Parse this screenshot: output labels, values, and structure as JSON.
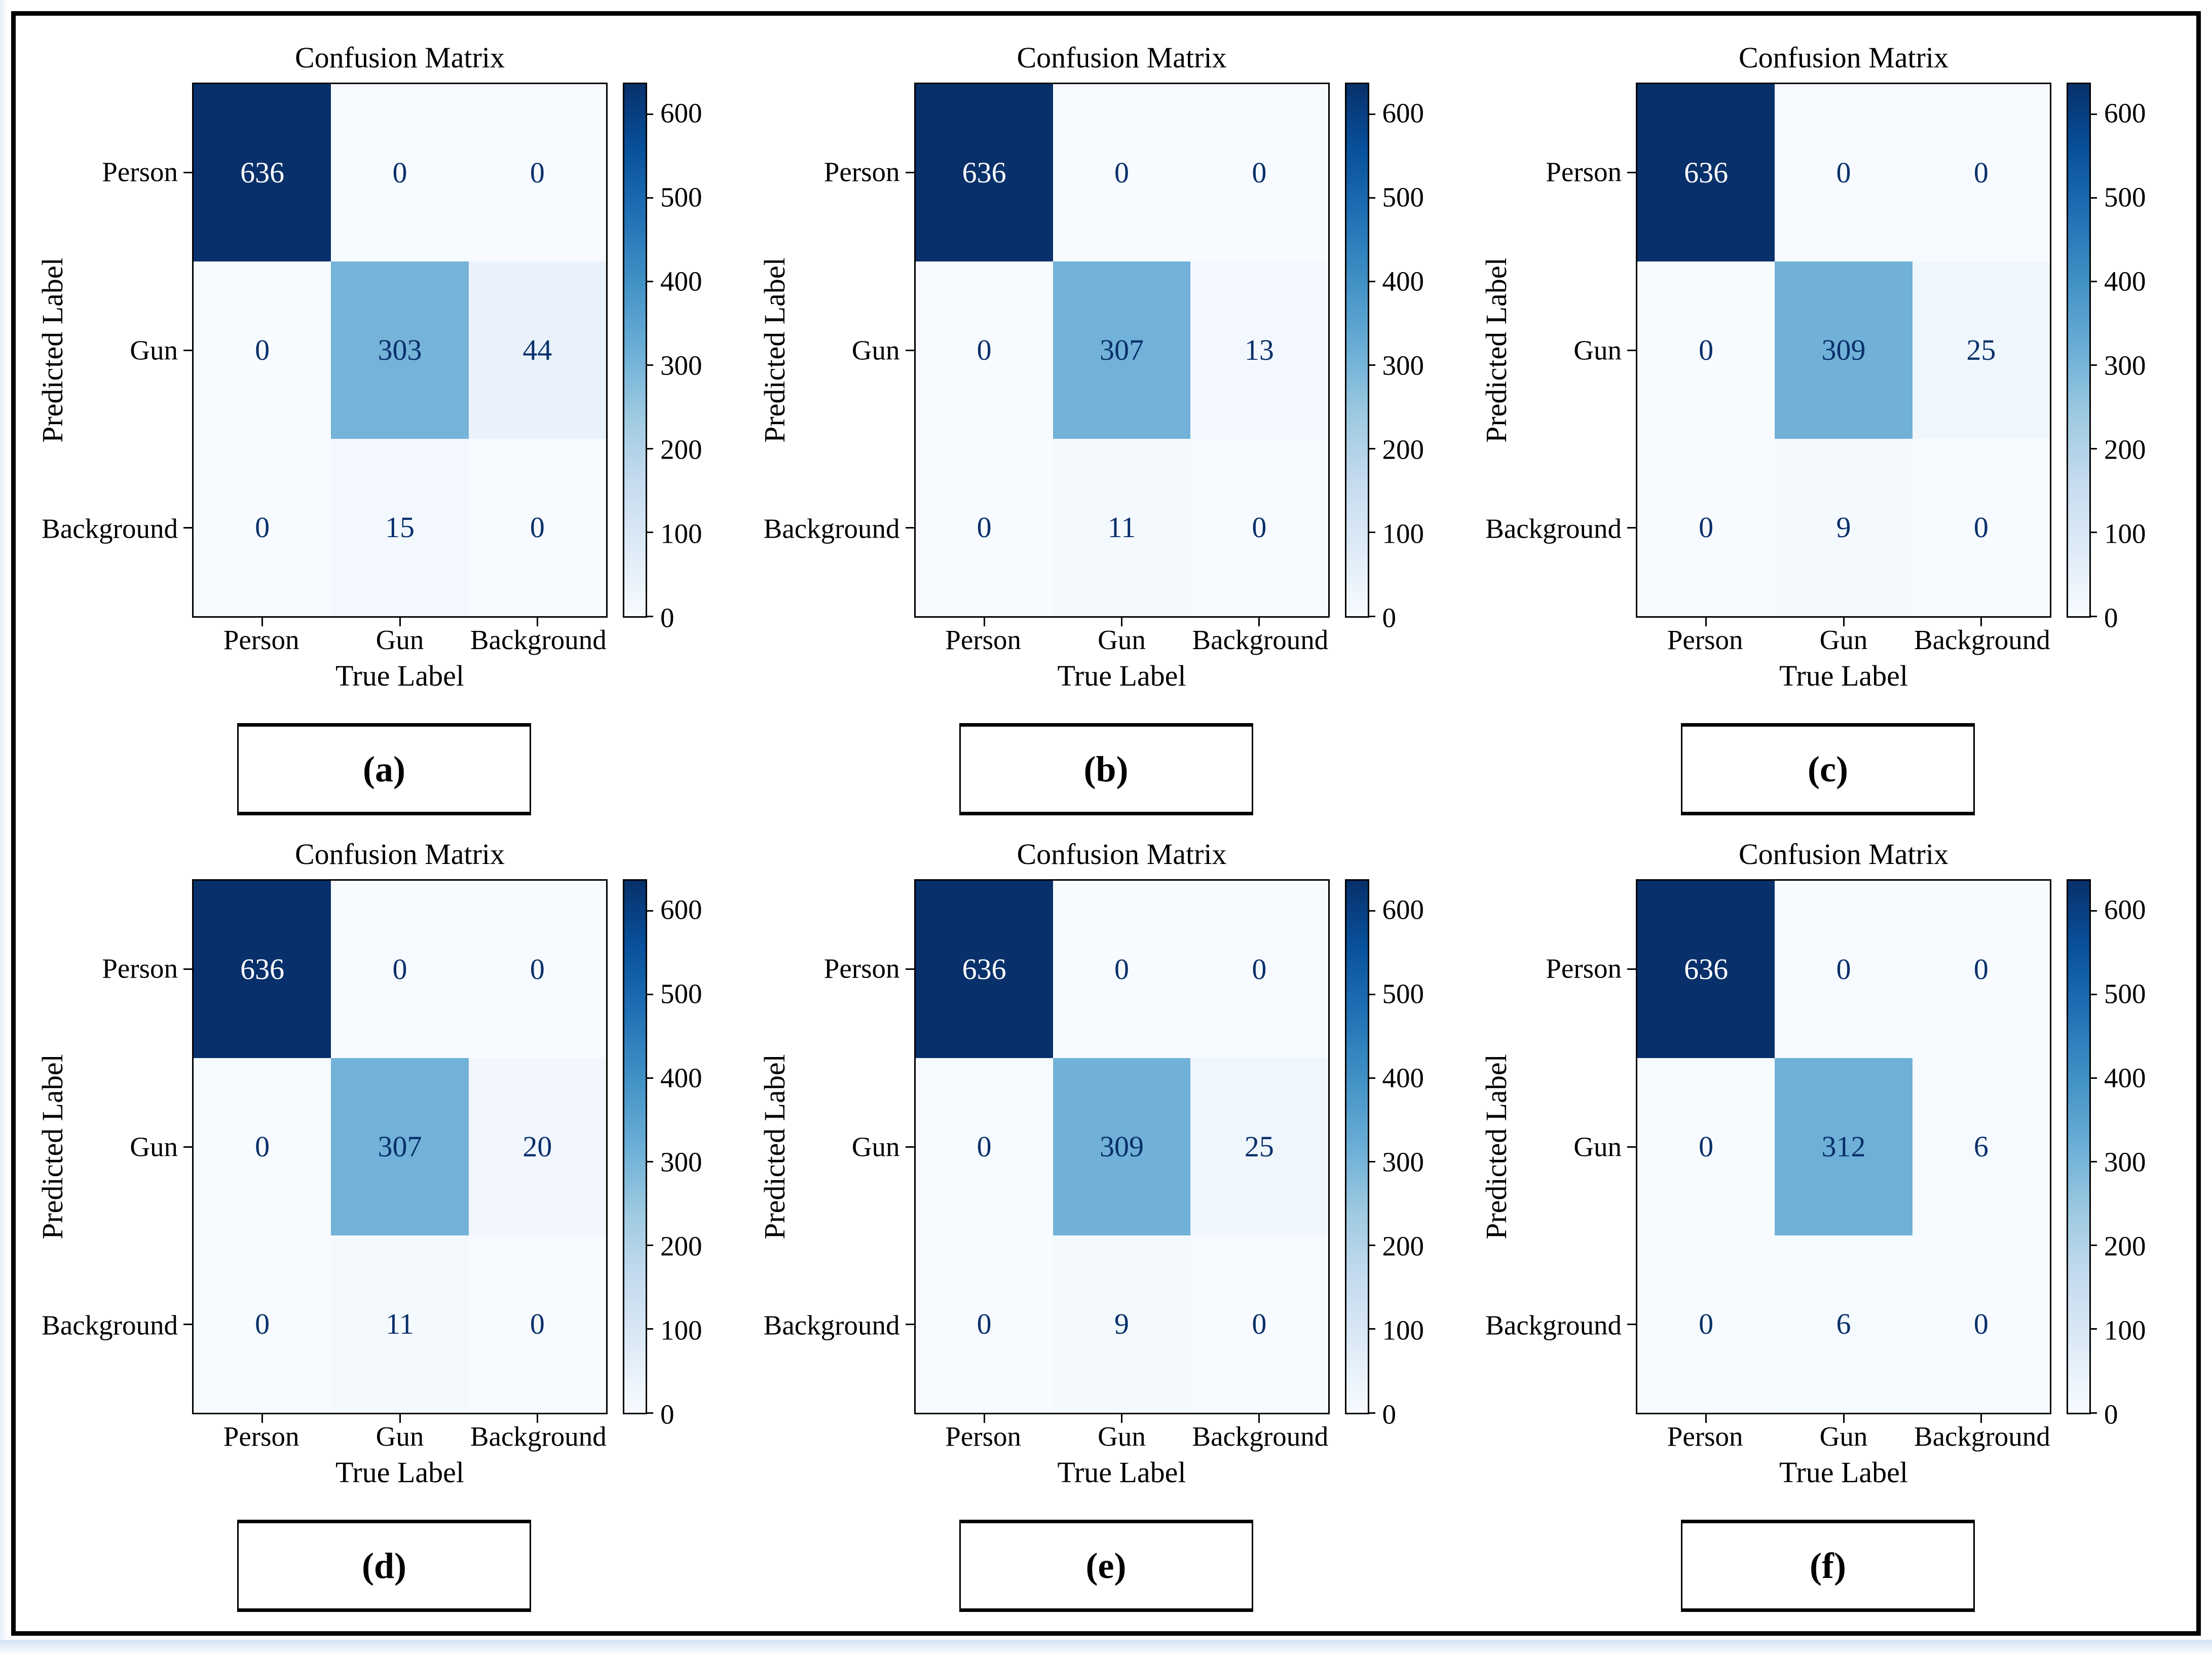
{
  "figure": {
    "frame_color": "#000000",
    "background": "#ffffff",
    "bottom_strip": {
      "top_color": "#d3e3f4",
      "bottom_color": "#fdfefe"
    }
  },
  "colormap": {
    "name": "Blues",
    "anchors": [
      [
        0.0,
        "#f7fbff"
      ],
      [
        0.125,
        "#deebf7"
      ],
      [
        0.25,
        "#c6dbef"
      ],
      [
        0.375,
        "#9ecae1"
      ],
      [
        0.5,
        "#6baed6"
      ],
      [
        0.625,
        "#4292c6"
      ],
      [
        0.75,
        "#2171b5"
      ],
      [
        0.875,
        "#08519c"
      ],
      [
        1.0,
        "#08306b"
      ]
    ],
    "annotation_dark_color": "#08306b",
    "annotation_light_color": "#ffffff"
  },
  "chart_data": [
    {
      "caption": "(a)",
      "type": "heatmap",
      "title": "Confusion Matrix",
      "xlabel": "True Label",
      "ylabel": "Predicted Label",
      "x_categories": [
        "Person",
        "Gun",
        "Background"
      ],
      "y_categories": [
        "Person",
        "Gun",
        "Background"
      ],
      "values": [
        [
          636,
          0,
          0
        ],
        [
          0,
          303,
          44
        ],
        [
          0,
          15,
          0
        ]
      ],
      "vmin": 0,
      "vmax": 636,
      "colorbar_ticks": [
        0,
        100,
        200,
        300,
        400,
        500,
        600
      ],
      "grid": false,
      "legend_position": "right-colorbar"
    },
    {
      "caption": "(b)",
      "type": "heatmap",
      "title": "Confusion Matrix",
      "xlabel": "True Label",
      "ylabel": "Predicted Label",
      "x_categories": [
        "Person",
        "Gun",
        "Background"
      ],
      "y_categories": [
        "Person",
        "Gun",
        "Background"
      ],
      "values": [
        [
          636,
          0,
          0
        ],
        [
          0,
          307,
          13
        ],
        [
          0,
          11,
          0
        ]
      ],
      "vmin": 0,
      "vmax": 636,
      "colorbar_ticks": [
        0,
        100,
        200,
        300,
        400,
        500,
        600
      ],
      "grid": false,
      "legend_position": "right-colorbar"
    },
    {
      "caption": "(c)",
      "type": "heatmap",
      "title": "Confusion Matrix",
      "xlabel": "True Label",
      "ylabel": "Predicted Label",
      "x_categories": [
        "Person",
        "Gun",
        "Background"
      ],
      "y_categories": [
        "Person",
        "Gun",
        "Background"
      ],
      "values": [
        [
          636,
          0,
          0
        ],
        [
          0,
          309,
          25
        ],
        [
          0,
          9,
          0
        ]
      ],
      "vmin": 0,
      "vmax": 636,
      "colorbar_ticks": [
        0,
        100,
        200,
        300,
        400,
        500,
        600
      ],
      "grid": false,
      "legend_position": "right-colorbar"
    },
    {
      "caption": "(d)",
      "type": "heatmap",
      "title": "Confusion Matrix",
      "xlabel": "True Label",
      "ylabel": "Predicted Label",
      "x_categories": [
        "Person",
        "Gun",
        "Background"
      ],
      "y_categories": [
        "Person",
        "Gun",
        "Background"
      ],
      "values": [
        [
          636,
          0,
          0
        ],
        [
          0,
          307,
          20
        ],
        [
          0,
          11,
          0
        ]
      ],
      "vmin": 0,
      "vmax": 636,
      "colorbar_ticks": [
        0,
        100,
        200,
        300,
        400,
        500,
        600
      ],
      "grid": false,
      "legend_position": "right-colorbar"
    },
    {
      "caption": "(e)",
      "type": "heatmap",
      "title": "Confusion Matrix",
      "xlabel": "True Label",
      "ylabel": "Predicted Label",
      "x_categories": [
        "Person",
        "Gun",
        "Background"
      ],
      "y_categories": [
        "Person",
        "Gun",
        "Background"
      ],
      "values": [
        [
          636,
          0,
          0
        ],
        [
          0,
          309,
          25
        ],
        [
          0,
          9,
          0
        ]
      ],
      "vmin": 0,
      "vmax": 636,
      "colorbar_ticks": [
        0,
        100,
        200,
        300,
        400,
        500,
        600
      ],
      "grid": false,
      "legend_position": "right-colorbar"
    },
    {
      "caption": "(f)",
      "type": "heatmap",
      "title": "Confusion Matrix",
      "xlabel": "True Label",
      "ylabel": "Predicted Label",
      "x_categories": [
        "Person",
        "Gun",
        "Background"
      ],
      "y_categories": [
        "Person",
        "Gun",
        "Background"
      ],
      "values": [
        [
          636,
          0,
          0
        ],
        [
          0,
          312,
          6
        ],
        [
          0,
          6,
          0
        ]
      ],
      "vmin": 0,
      "vmax": 636,
      "colorbar_ticks": [
        0,
        100,
        200,
        300,
        400,
        500,
        600
      ],
      "grid": false,
      "legend_position": "right-colorbar"
    }
  ]
}
